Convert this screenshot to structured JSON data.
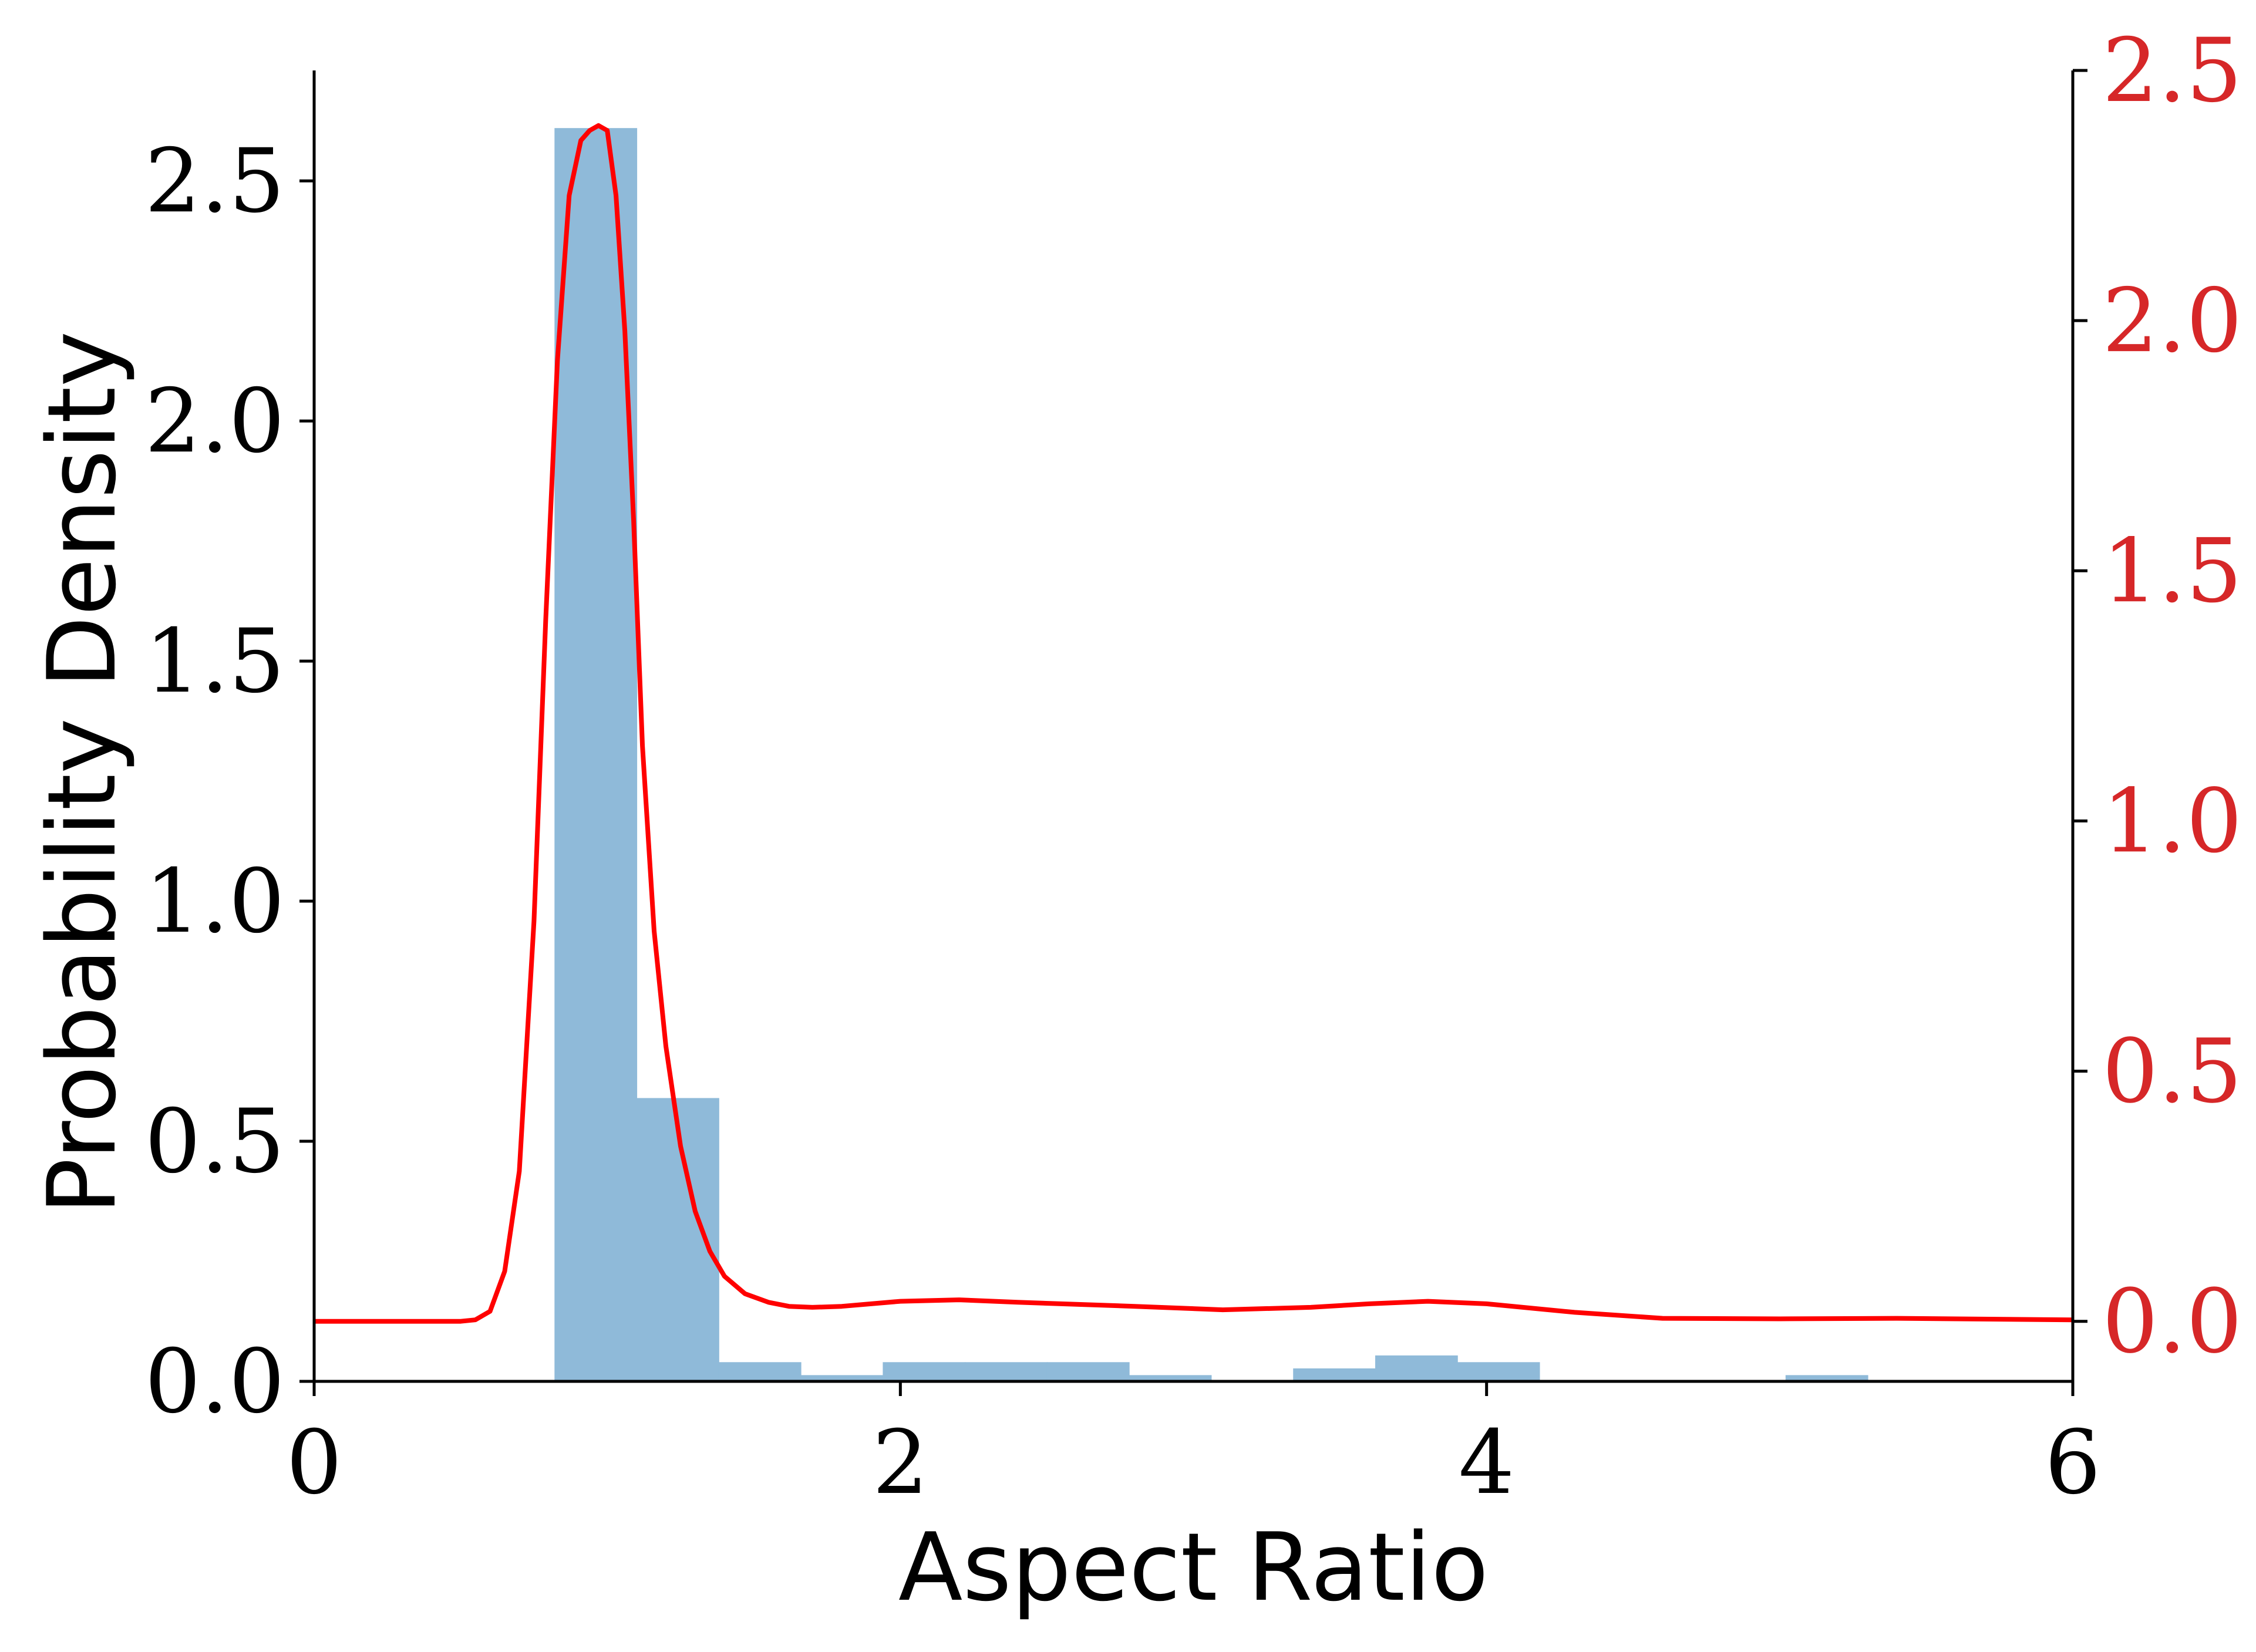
{
  "chart_data": {
    "type": "bar",
    "xlabel": "Aspect Ratio",
    "ylabel": "Probability Density",
    "xlim": [
      0,
      6
    ],
    "ylim": [
      0,
      2.73
    ],
    "y2lim": [
      -0.12,
      2.5
    ],
    "x_ticks": [
      0,
      2,
      4,
      6
    ],
    "x_tick_labels": [
      "0",
      "2",
      "4",
      "6"
    ],
    "y_ticks": [
      0.0,
      0.5,
      1.0,
      1.5,
      2.0,
      2.5
    ],
    "y_tick_labels": [
      "0.0",
      "0.5",
      "1.0",
      "1.5",
      "2.0",
      "2.5"
    ],
    "y2_ticks": [
      0.0,
      0.5,
      1.0,
      1.5,
      2.0,
      2.5
    ],
    "y2_tick_labels": [
      "0.0",
      "0.5",
      "1.0",
      "1.5",
      "2.0",
      "2.5"
    ],
    "grid": false,
    "histogram": {
      "color": "#8fbad9",
      "bin_width": 0.282,
      "bins": [
        {
          "x0": 0.82,
          "value": 2.61
        },
        {
          "x0": 1.1,
          "value": 0.59
        },
        {
          "x0": 1.38,
          "value": 0.04
        },
        {
          "x0": 1.66,
          "value": 0.013
        },
        {
          "x0": 1.94,
          "value": 0.04
        },
        {
          "x0": 2.22,
          "value": 0.04
        },
        {
          "x0": 2.5,
          "value": 0.04
        },
        {
          "x0": 2.78,
          "value": 0.013
        },
        {
          "x0": 3.06,
          "value": 0.0
        },
        {
          "x0": 3.34,
          "value": 0.027
        },
        {
          "x0": 3.62,
          "value": 0.054
        },
        {
          "x0": 3.9,
          "value": 0.04
        },
        {
          "x0": 4.18,
          "value": 0.0
        },
        {
          "x0": 4.46,
          "value": 0.0
        },
        {
          "x0": 4.74,
          "value": 0.0
        },
        {
          "x0": 5.02,
          "value": 0.013
        }
      ]
    },
    "density_curve": {
      "axis": "right",
      "color": "#ff0000",
      "x": [
        0.0,
        0.4,
        0.5,
        0.55,
        0.6,
        0.65,
        0.7,
        0.75,
        0.79,
        0.83,
        0.87,
        0.91,
        0.94,
        0.97,
        1.0,
        1.03,
        1.06,
        1.09,
        1.12,
        1.16,
        1.2,
        1.25,
        1.3,
        1.35,
        1.4,
        1.47,
        1.55,
        1.62,
        1.7,
        1.8,
        2.0,
        2.2,
        2.4,
        2.8,
        3.1,
        3.4,
        3.6,
        3.8,
        4.0,
        4.3,
        4.6,
        5.0,
        5.4,
        6.0
      ],
      "y": [
        0.0,
        0.0,
        0.0,
        0.003,
        0.02,
        0.1,
        0.3,
        0.8,
        1.4,
        1.92,
        2.25,
        2.36,
        2.38,
        2.39,
        2.38,
        2.25,
        1.98,
        1.6,
        1.15,
        0.78,
        0.55,
        0.35,
        0.22,
        0.14,
        0.09,
        0.055,
        0.038,
        0.03,
        0.028,
        0.03,
        0.04,
        0.043,
        0.038,
        0.03,
        0.023,
        0.028,
        0.035,
        0.04,
        0.035,
        0.018,
        0.006,
        0.005,
        0.006,
        0.003
      ]
    },
    "left_axis_color": "#000000",
    "right_axis_color": "#d62728"
  }
}
